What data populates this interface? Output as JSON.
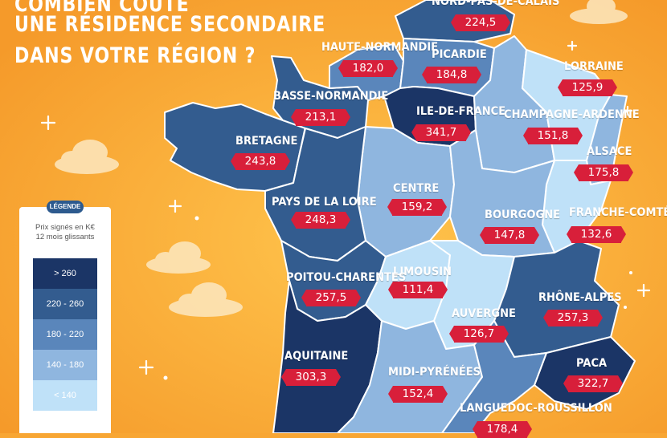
{
  "title": {
    "line1": "COMBIEN COÛTE",
    "line2": "UNE RÉSIDENCE SECONDAIRE",
    "line3": "DANS VOTRE RÉGION ?"
  },
  "legend": {
    "heading": "LÉGENDE",
    "subtitle_1": "Prix signés en K€",
    "subtitle_2": "12 mois glissants",
    "items": [
      {
        "label": "> 260",
        "color": "#1b3566"
      },
      {
        "label": "220 - 260",
        "color": "#335c8f"
      },
      {
        "label": "180 - 220",
        "color": "#5a86bb"
      },
      {
        "label": "140 - 180",
        "color": "#8fb6df"
      },
      {
        "label": "< 140",
        "color": "#bfe1f8"
      }
    ]
  },
  "regions": [
    {
      "name": "NORD-PAS-DE-CALAIS",
      "value": "224,5"
    },
    {
      "name": "HAUTE-NORMANDIE",
      "value": "182,0"
    },
    {
      "name": "PICARDIE",
      "value": "184,8"
    },
    {
      "name": "LORRAINE",
      "value": "125,9"
    },
    {
      "name": "BASSE-NORMANDIE",
      "value": "213,1"
    },
    {
      "name": "ILE-DE-FRANCE",
      "value": "341,7"
    },
    {
      "name": "CHAMPAGNE-ARDENNE",
      "value": "151,8"
    },
    {
      "name": "BRETAGNE",
      "value": "243,8"
    },
    {
      "name": "ALSACE",
      "value": "175,8"
    },
    {
      "name": "CENTRE",
      "value": "159,2"
    },
    {
      "name": "PAYS DE LA LOIRE",
      "value": "248,3"
    },
    {
      "name": "BOURGOGNE",
      "value": "147,8"
    },
    {
      "name": "FRANCHE-COMTÉ",
      "value": "132,6"
    },
    {
      "name": "LIMOUSIN",
      "value": "111,4"
    },
    {
      "name": "POITOU-CHARENTES",
      "value": "257,5"
    },
    {
      "name": "RHÔNE-ALPES",
      "value": "257,3"
    },
    {
      "name": "AUVERGNE",
      "value": "126,7"
    },
    {
      "name": "AQUITAINE",
      "value": "303,3"
    },
    {
      "name": "PACA",
      "value": "322,7"
    },
    {
      "name": "MIDI-PYRÉNÉES",
      "value": "152,4"
    },
    {
      "name": "LANGUEDOC-ROUSSILLON",
      "value": "178,4"
    }
  ],
  "colors": {
    "background": "#f8a633",
    "tag": "#d81f3a"
  }
}
